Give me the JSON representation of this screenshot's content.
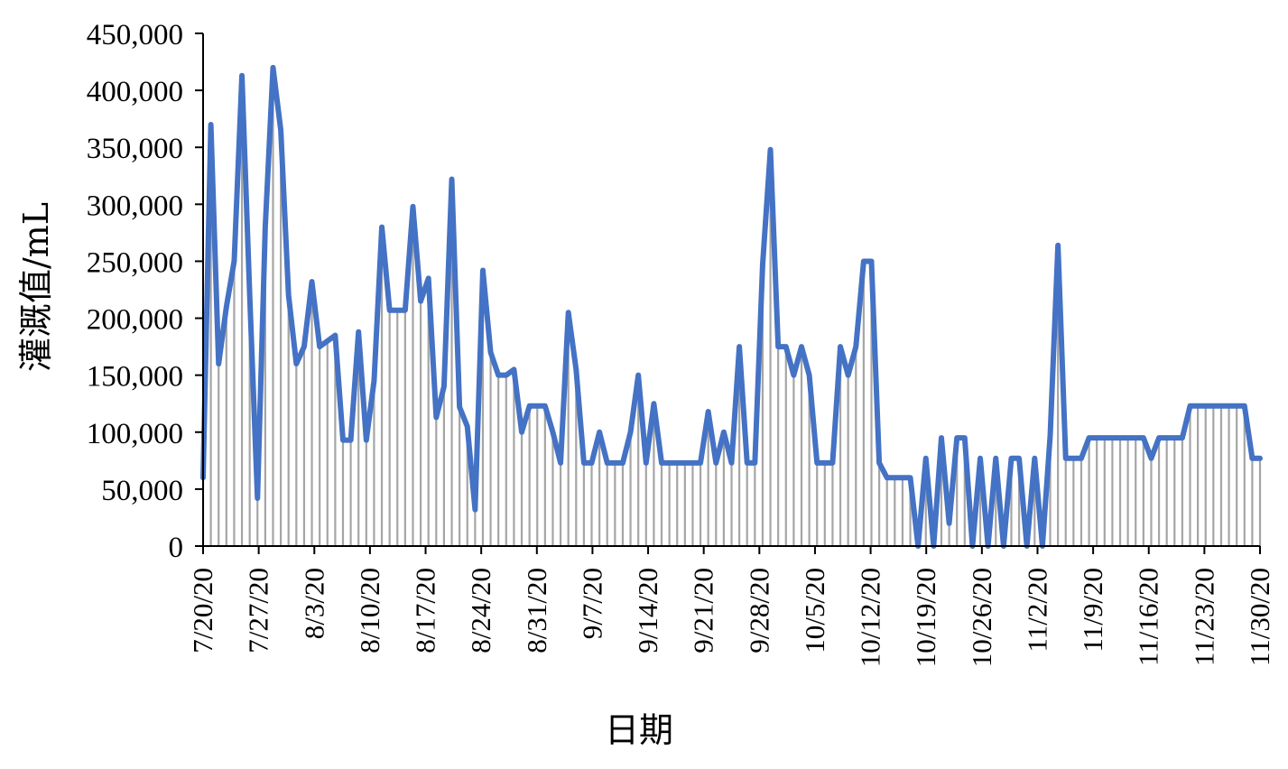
{
  "chart_data": {
    "type": "line",
    "title": "",
    "xlabel": "日期",
    "ylabel": "灌溉值/mL",
    "x_start": "7/20/2020",
    "x_end": "11/30/2020",
    "ylim": [
      0,
      450000
    ],
    "yticks": [
      0,
      50000,
      100000,
      150000,
      200000,
      250000,
      300000,
      350000,
      400000,
      450000
    ],
    "ytick_labels": [
      "0",
      "50,000",
      "100,000",
      "150,000",
      "200,000",
      "250,000",
      "300,000",
      "350,000",
      "400,000",
      "450,000"
    ],
    "xtick_labels": [
      "7/20/20",
      "7/27/20",
      "8/3/20",
      "8/10/20",
      "8/17/20",
      "8/24/20",
      "8/31/20",
      "9/7/20",
      "9/14/20",
      "9/21/20",
      "9/28/20",
      "10/5/20",
      "10/12/20",
      "10/19/20",
      "10/26/20",
      "11/2/20",
      "11/9/20",
      "11/16/20",
      "11/23/20",
      "11/30/20"
    ],
    "grid": false,
    "legend": "none",
    "line_color": "#4472C4",
    "drop_line_color": "#A5A5A5",
    "series": [
      {
        "values": [
          60000,
          370000,
          160000,
          210000,
          250000,
          413000,
          220000,
          42000,
          280000,
          420000,
          365000,
          220000,
          160000,
          175000,
          232000,
          175000,
          180000,
          185000,
          93000,
          93000,
          188000,
          93000,
          145000,
          280000,
          207000,
          207000,
          207000,
          298000,
          215000,
          235000,
          113000,
          140000,
          322000,
          122000,
          105000,
          32000,
          242000,
          170000,
          150000,
          150000,
          155000,
          100000,
          123000,
          123000,
          123000,
          100000,
          73000,
          205000,
          155000,
          73000,
          73000,
          100000,
          73000,
          73000,
          73000,
          100000,
          150000,
          73000,
          125000,
          73000,
          73000,
          73000,
          73000,
          73000,
          73000,
          118000,
          73000,
          100000,
          73000,
          175000,
          73000,
          73000,
          247000,
          348000,
          175000,
          175000,
          150000,
          175000,
          150000,
          73000,
          73000,
          73000,
          175000,
          150000,
          175000,
          250000,
          250000,
          73000,
          60000,
          60000,
          60000,
          60000,
          0,
          77000,
          0,
          95000,
          20000,
          95000,
          95000,
          0,
          77000,
          0,
          77000,
          0,
          77000,
          77000,
          0,
          77000,
          0,
          97000,
          264000,
          77000,
          77000,
          77000,
          95000,
          95000,
          95000,
          95000,
          95000,
          95000,
          95000,
          95000,
          77000,
          95000,
          95000,
          95000,
          95000,
          123000,
          123000,
          123000,
          123000,
          123000,
          123000,
          123000,
          123000,
          77000,
          77000
        ]
      }
    ]
  }
}
